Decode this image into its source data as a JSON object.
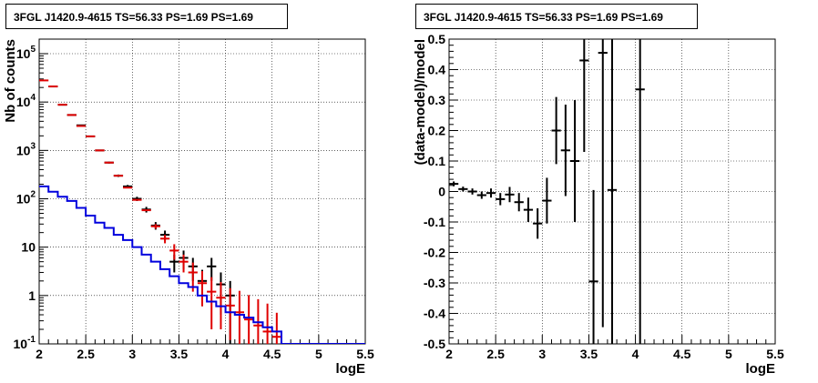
{
  "colors": {
    "data": "#000000",
    "model": "#e00000",
    "background_curve": "#0000dd",
    "grid": "#000000"
  },
  "chart_data": [
    {
      "type": "scatter",
      "title": "3FGL J1420.9-4615 TS=56.33 PS=1.69 PS=1.69",
      "xlabel": "logE",
      "ylabel": "Nb of counts",
      "xlim": [
        2,
        5.5
      ],
      "ylim": [
        0.1,
        200000
      ],
      "yscale": "log",
      "grid": true,
      "x_ticks": [
        "2",
        "2.5",
        "3",
        "3.5",
        "4",
        "4.5",
        "5",
        "5.5"
      ],
      "y_ticks": [
        {
          "base": "10",
          "exp": "-1",
          "value": 0.1
        },
        {
          "base": "1",
          "exp": "",
          "value": 1
        },
        {
          "base": "10",
          "exp": "",
          "value": 10
        },
        {
          "base": "10",
          "exp": "2",
          "value": 100
        },
        {
          "base": "10",
          "exp": "3",
          "value": 1000
        },
        {
          "base": "10",
          "exp": "4",
          "value": 10000
        },
        {
          "base": "10",
          "exp": "5",
          "value": 100000
        }
      ],
      "x_bin_halfwidth": 0.05,
      "series": [
        {
          "type": "errorbar",
          "color": "#000000",
          "x": [
            2.15,
            2.25,
            2.35,
            2.45,
            2.55,
            2.65,
            2.75,
            2.85,
            2.95,
            3.05,
            3.15,
            3.25,
            3.35,
            3.45,
            3.55,
            3.65,
            3.75,
            3.85,
            3.95,
            4.05
          ],
          "y": [
            21000,
            8800,
            5400,
            3300,
            1950,
            1000,
            560,
            300,
            180,
            100,
            60,
            28,
            18,
            5,
            6,
            4,
            2,
            4,
            1.7,
            1
          ],
          "yerr_low": [
            150,
            90,
            70,
            60,
            45,
            32,
            24,
            17,
            13,
            10,
            8,
            5,
            4,
            2,
            2.5,
            2,
            1.4,
            2,
            1.3,
            0.9
          ],
          "yerr_high": [
            150,
            90,
            70,
            60,
            45,
            32,
            24,
            17,
            13,
            10,
            8,
            5,
            4,
            2,
            2.5,
            2,
            1.4,
            2,
            1.3,
            1
          ]
        },
        {
          "type": "errorbar",
          "color": "#e00000",
          "x": [
            2.05,
            2.15,
            2.25,
            2.35,
            2.45,
            2.55,
            2.65,
            2.75,
            2.85,
            2.95,
            3.05,
            3.15,
            3.25,
            3.35,
            3.45,
            3.55,
            3.65,
            3.75,
            3.85,
            3.95,
            4.05,
            4.15,
            4.25,
            4.35,
            4.45,
            4.55
          ],
          "y": [
            28000,
            21000,
            8800,
            5400,
            3200,
            1950,
            1000,
            560,
            300,
            170,
            95,
            58,
            27,
            15,
            8.5,
            5,
            3,
            1.8,
            1.2,
            0.9,
            0.62,
            0.45,
            0.32,
            0.24,
            0.18,
            0.14
          ],
          "yerr_low": [
            0,
            0,
            0,
            0,
            0,
            0,
            0,
            0,
            0,
            0,
            0,
            0,
            3,
            3,
            3,
            2,
            1.8,
            1.2,
            1,
            0.7,
            0.5,
            0.35,
            0.22,
            0.14,
            0.08,
            0.04
          ],
          "yerr_high": [
            0,
            0,
            0,
            0,
            0,
            0,
            0,
            0,
            0,
            0,
            0,
            0,
            3,
            3,
            3,
            2,
            1.8,
            1.4,
            1.2,
            1,
            0.8,
            0.8,
            0.7,
            0.6,
            0.5,
            0.3
          ]
        },
        {
          "type": "step",
          "color": "#0000dd",
          "x_edges": [
            2.0,
            2.1,
            2.2,
            2.3,
            2.4,
            2.5,
            2.6,
            2.7,
            2.8,
            2.9,
            3.0,
            3.1,
            3.2,
            3.3,
            3.4,
            3.5,
            3.6,
            3.7,
            3.8,
            3.9,
            4.0,
            4.1,
            4.2,
            4.3,
            4.4,
            4.5,
            4.6,
            5.5
          ],
          "y": [
            180,
            140,
            110,
            90,
            65,
            45,
            32,
            25,
            18,
            14,
            10,
            7,
            5,
            3.5,
            2.5,
            1.8,
            1.5,
            1.0,
            0.75,
            0.6,
            0.45,
            0.4,
            0.35,
            0.28,
            0.22,
            0.18,
            0.1
          ]
        }
      ]
    },
    {
      "type": "scatter",
      "title": "3FGL J1420.9-4615 TS=56.33 PS=1.69 PS=1.69",
      "xlabel": "logE",
      "ylabel": "(data-model)/model",
      "xlim": [
        2,
        5.5
      ],
      "ylim": [
        -0.5,
        0.5
      ],
      "grid": true,
      "x_ticks": [
        "2",
        "2.5",
        "3",
        "3.5",
        "4",
        "4.5",
        "5",
        "5.5"
      ],
      "y_ticks": [
        "-0.5",
        "-0.4",
        "-0.3",
        "-0.2",
        "-0.1",
        "0",
        "0.1",
        "0.2",
        "0.3",
        "0.4",
        "0.5"
      ],
      "x_bin_halfwidth": 0.05,
      "series": [
        {
          "type": "errorbar",
          "color": "#000000",
          "x": [
            2.05,
            2.15,
            2.25,
            2.35,
            2.45,
            2.55,
            2.65,
            2.75,
            2.85,
            2.95,
            3.05,
            3.15,
            3.25,
            3.35,
            3.45,
            3.55,
            3.65,
            3.75,
            4.05
          ],
          "y": [
            0.025,
            0.008,
            0.0,
            -0.012,
            -0.005,
            -0.025,
            -0.01,
            -0.035,
            -0.06,
            -0.105,
            -0.03,
            0.2,
            0.135,
            0.1,
            0.43,
            -0.295,
            0.455,
            0.005,
            0.335
          ],
          "yerr_low": [
            0.008,
            0.008,
            0.01,
            0.012,
            0.015,
            0.02,
            0.025,
            0.03,
            0.04,
            0.05,
            0.075,
            0.11,
            0.15,
            0.2,
            0.3,
            0.3,
            0.9,
            0.6,
            1.0
          ],
          "yerr_high": [
            0.008,
            0.008,
            0.01,
            0.012,
            0.015,
            0.02,
            0.025,
            0.03,
            0.04,
            0.05,
            0.075,
            0.11,
            0.15,
            0.2,
            0.3,
            0.3,
            0.9,
            0.6,
            1.0
          ]
        }
      ]
    }
  ]
}
